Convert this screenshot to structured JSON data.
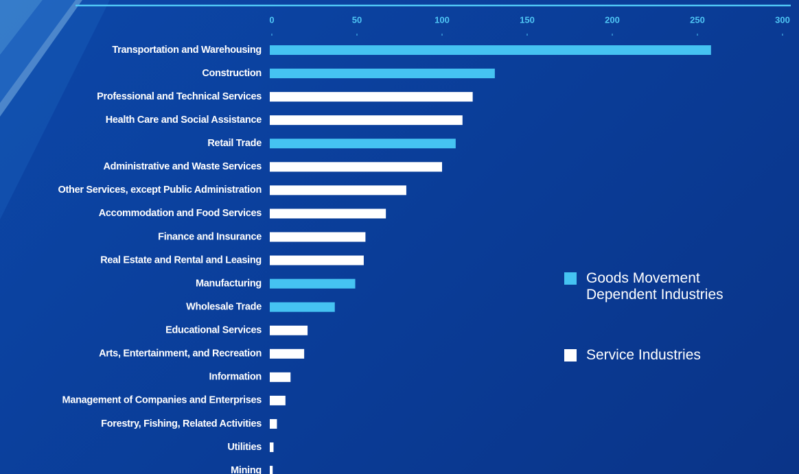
{
  "chart_data": {
    "type": "barh",
    "categories": [
      "Transportation and Warehousing",
      "Construction",
      "Professional and Technical Services",
      "Health Care and Social Assistance",
      "Retail Trade",
      "Administrative and Waste Services",
      "Other Services, except Public Administration",
      "Accommodation and Food Services",
      "Finance and Insurance",
      "Real Estate and Rental and Leasing",
      "Manufacturing",
      "Wholesale Trade",
      "Educational Services",
      "Arts, Entertainment, and Recreation",
      "Information",
      "Management of Companies and Enterprises",
      "Forestry, Fishing, Related Activities",
      "Utilities",
      "Mining"
    ],
    "series": [
      {
        "name": "Goods Movement Dependent Industries",
        "color": "#45c3f2",
        "values": [
          258,
          131,
          null,
          null,
          108,
          null,
          null,
          null,
          null,
          null,
          49,
          37,
          null,
          null,
          null,
          null,
          null,
          null,
          null
        ]
      },
      {
        "name": "Service Industries",
        "color": "#ffffff",
        "values": [
          null,
          null,
          118,
          112,
          null,
          100,
          79,
          67,
          55,
          54,
          null,
          null,
          21,
          19,
          11,
          8,
          3,
          1,
          0.5
        ]
      }
    ],
    "xlim": [
      0,
      300
    ],
    "xticks": [
      0,
      50,
      100,
      150,
      200,
      250,
      300
    ]
  }
}
